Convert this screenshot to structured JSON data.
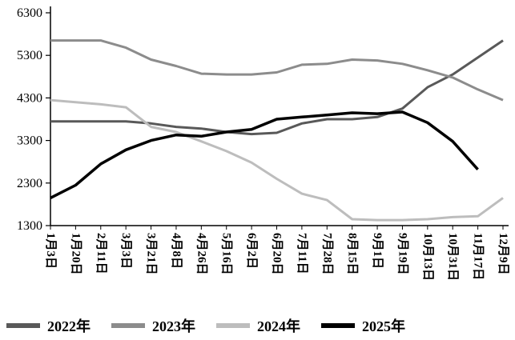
{
  "chart_data": {
    "type": "line",
    "title": "",
    "xlabel": "",
    "ylabel": "",
    "grid": false,
    "legend_position": "bottom",
    "background": "#ffffff",
    "axis_color": "#000000",
    "ylim": [
      1300,
      6300
    ],
    "yticks": [
      1300,
      2300,
      3300,
      4300,
      5300,
      6300
    ],
    "categories": [
      "1月3日",
      "1月20日",
      "2月11日",
      "3月3日",
      "3月21日",
      "4月8日",
      "4月26日",
      "5月16日",
      "6月2日",
      "6月20日",
      "7月11日",
      "7月28日",
      "8月15日",
      "9月1日",
      "9月19日",
      "10月13日",
      "10月31日",
      "11月17日",
      "12月9日"
    ],
    "series": [
      {
        "name": "2022年",
        "color": "#595959",
        "stroke_width": 3,
        "values": [
          3750,
          3750,
          3750,
          3750,
          3700,
          3620,
          3580,
          3500,
          3450,
          3480,
          3700,
          3800,
          3800,
          3850,
          4050,
          4550,
          4850,
          5250,
          5650
        ]
      },
      {
        "name": "2023年",
        "color": "#8c8c8c",
        "stroke_width": 3,
        "values": [
          5650,
          5650,
          5650,
          5480,
          5200,
          5050,
          4870,
          4850,
          4850,
          4900,
          5080,
          5100,
          5200,
          5180,
          5100,
          4950,
          4780,
          4500,
          4250
        ]
      },
      {
        "name": "2024年",
        "color": "#bdbdbd",
        "stroke_width": 3,
        "values": [
          4250,
          4200,
          4150,
          4080,
          3620,
          3500,
          3280,
          3050,
          2780,
          2400,
          2050,
          1900,
          1450,
          1430,
          1430,
          1450,
          1500,
          1520,
          1950
        ]
      },
      {
        "name": "2025年",
        "color": "#000000",
        "stroke_width": 3.5,
        "values": [
          1950,
          2250,
          2750,
          3080,
          3300,
          3430,
          3400,
          3500,
          3560,
          3800,
          3850,
          3900,
          3950,
          3930,
          3970,
          3720,
          3280,
          2620,
          null
        ]
      }
    ]
  }
}
